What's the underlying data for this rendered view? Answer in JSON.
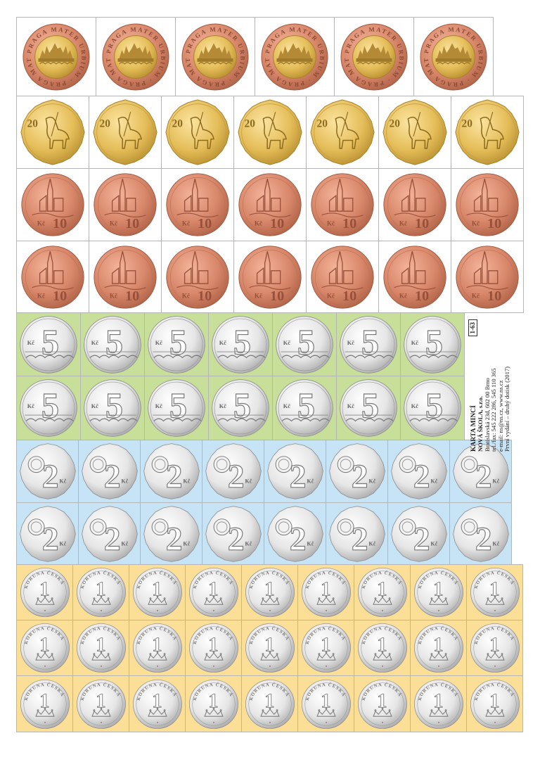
{
  "sheet": {
    "code": "1-63",
    "title": "KARTA MINCÍ",
    "publisher": "NOVÁ ŠKOLA, s.r.o.",
    "address": "Bratislavská 23d, 602 00 Brno",
    "phone": "tel./fax: 545 222 286, 545 110 365",
    "contact": "e-mail: ns@ns.cz, www.ns.cz",
    "edition": "První vydání – druhý dotisk (2017)"
  },
  "colors": {
    "green_bg": "#c8df9a",
    "blue_bg": "#c6e4f6",
    "yellow_bg": "#fbdf96",
    "gold": "#e5be5a",
    "copper": "#d8876a",
    "silver": "#e6e6e6"
  },
  "coins": {
    "c50": {
      "ring_text": "PRAGA MATER URBIUM",
      "count": 6
    },
    "c20": {
      "denomination": "20",
      "count": 7
    },
    "c10": {
      "denomination": "10",
      "currency": "Kč",
      "count": 14
    },
    "c5": {
      "denomination": "5",
      "currency": "Kč",
      "count": 14
    },
    "c2": {
      "denomination": "2",
      "currency": "Kč",
      "count": 16
    },
    "c1": {
      "denomination": "1",
      "ring_text": "KORUNA ČESKÁ",
      "count": 27
    }
  }
}
